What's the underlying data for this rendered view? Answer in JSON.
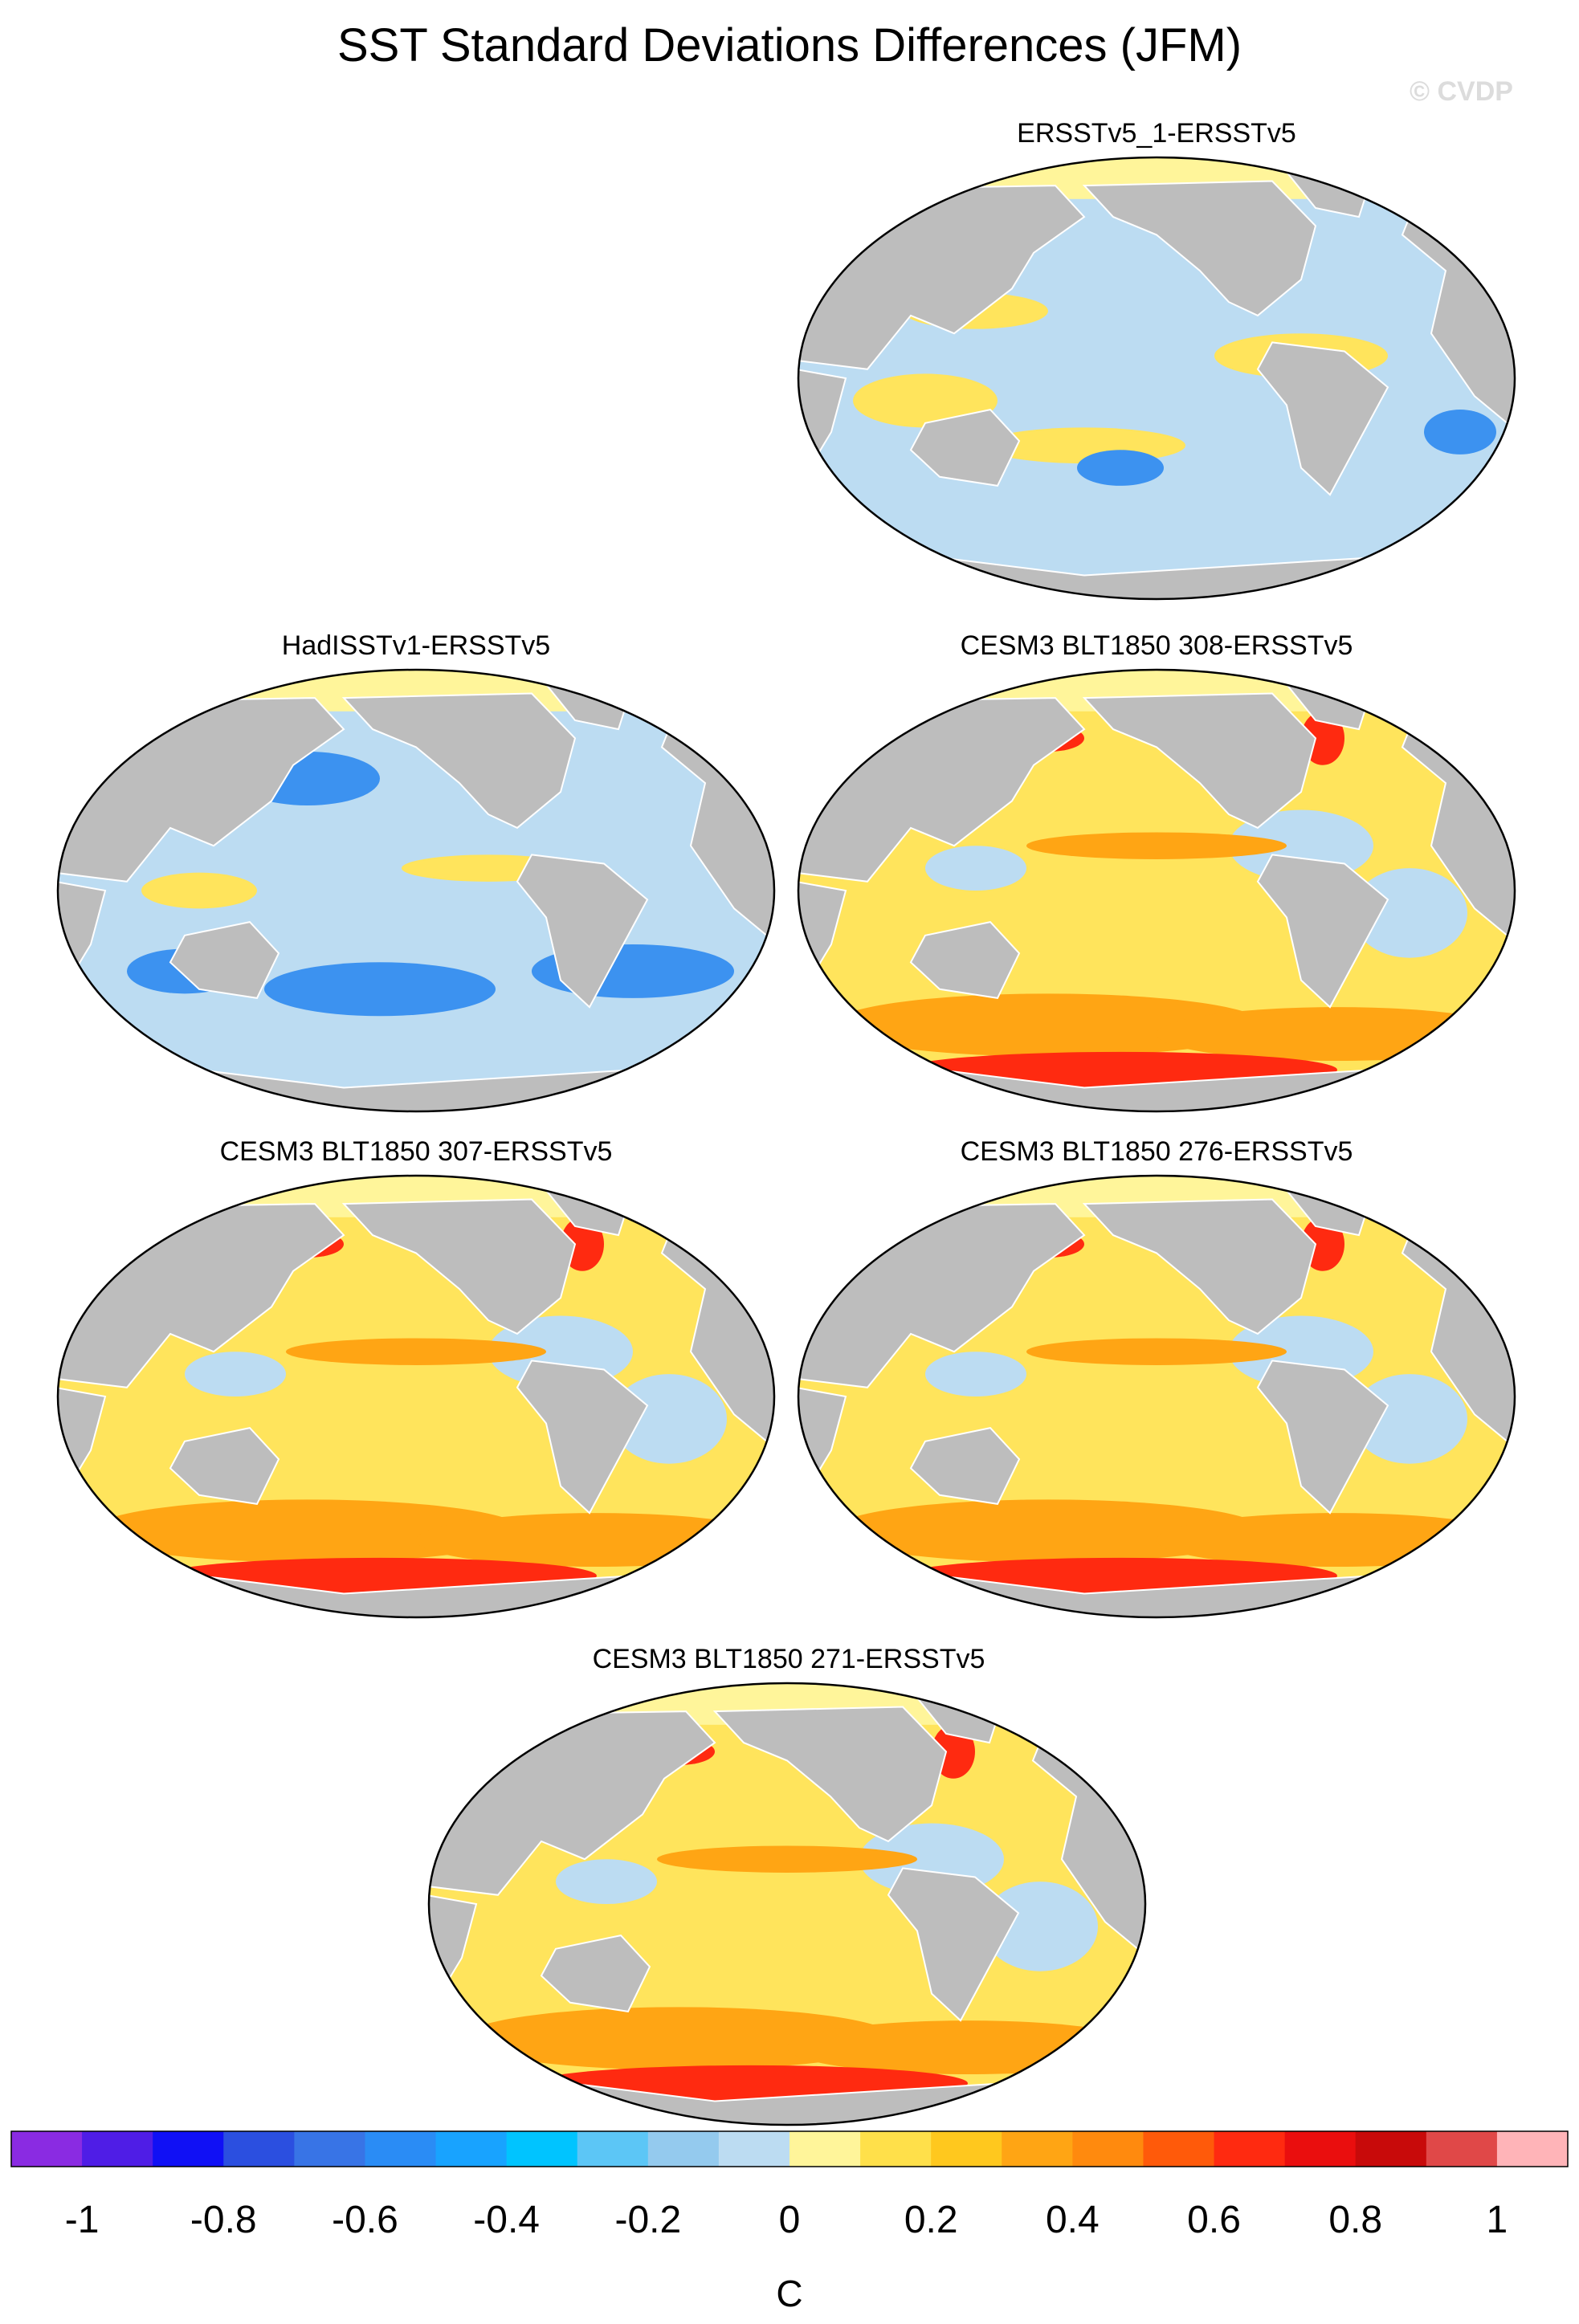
{
  "title": "SST Standard Deviations Differences (JFM)",
  "watermark": "© CVDP",
  "palette": {
    "land": "#bdbdbd",
    "arctic": "#fff59a",
    "ocean_light_blue": "#bcdcf2",
    "ocean_yellow": "#ffe45c",
    "ocean_orange": "#ffa514",
    "ocean_red": "#ff2a10",
    "ocean_blue": "#3c92f0"
  },
  "panels": [
    {
      "id": "ersstv5-1",
      "label": "ERSSTv5_1-ERSSTv5",
      "tone": "lightblue"
    },
    {
      "id": "hadisstv1",
      "label": "HadISSTv1-ERSSTv5",
      "tone": "blue"
    },
    {
      "id": "cesm3-308",
      "label": "CESM3 BLT1850 308-ERSSTv5",
      "tone": "warm"
    },
    {
      "id": "cesm3-307",
      "label": "CESM3 BLT1850 307-ERSSTv5",
      "tone": "warm"
    },
    {
      "id": "cesm3-276",
      "label": "CESM3 BLT1850 276-ERSSTv5",
      "tone": "warm"
    },
    {
      "id": "cesm3-271",
      "label": "CESM3 BLT1850 271-ERSSTv5",
      "tone": "warm"
    }
  ],
  "colorbar": {
    "unit": "C",
    "tick_labels": [
      "-1",
      "-0.8",
      "-0.6",
      "-0.4",
      "-0.2",
      "0",
      "0.2",
      "0.4",
      "0.6",
      "0.8",
      "1"
    ],
    "tick_values": [
      -1,
      -0.8,
      -0.6,
      -0.4,
      -0.2,
      0,
      0.2,
      0.4,
      0.6,
      0.8,
      1
    ],
    "range": [
      -1.1,
      1.1
    ],
    "colors": [
      "#8a2be2",
      "#4f1de6",
      "#1010f5",
      "#2b4fe0",
      "#3874e6",
      "#2a8cf5",
      "#18a3ff",
      "#00c4ff",
      "#5cc6f6",
      "#94caee",
      "#bcdcf2",
      "#fff59a",
      "#ffe04a",
      "#ffc81e",
      "#ffa514",
      "#ff8a0e",
      "#ff5a0a",
      "#ff2a10",
      "#ea0e0e",
      "#c80a0a",
      "#e04848",
      "#ffb4b8"
    ]
  }
}
